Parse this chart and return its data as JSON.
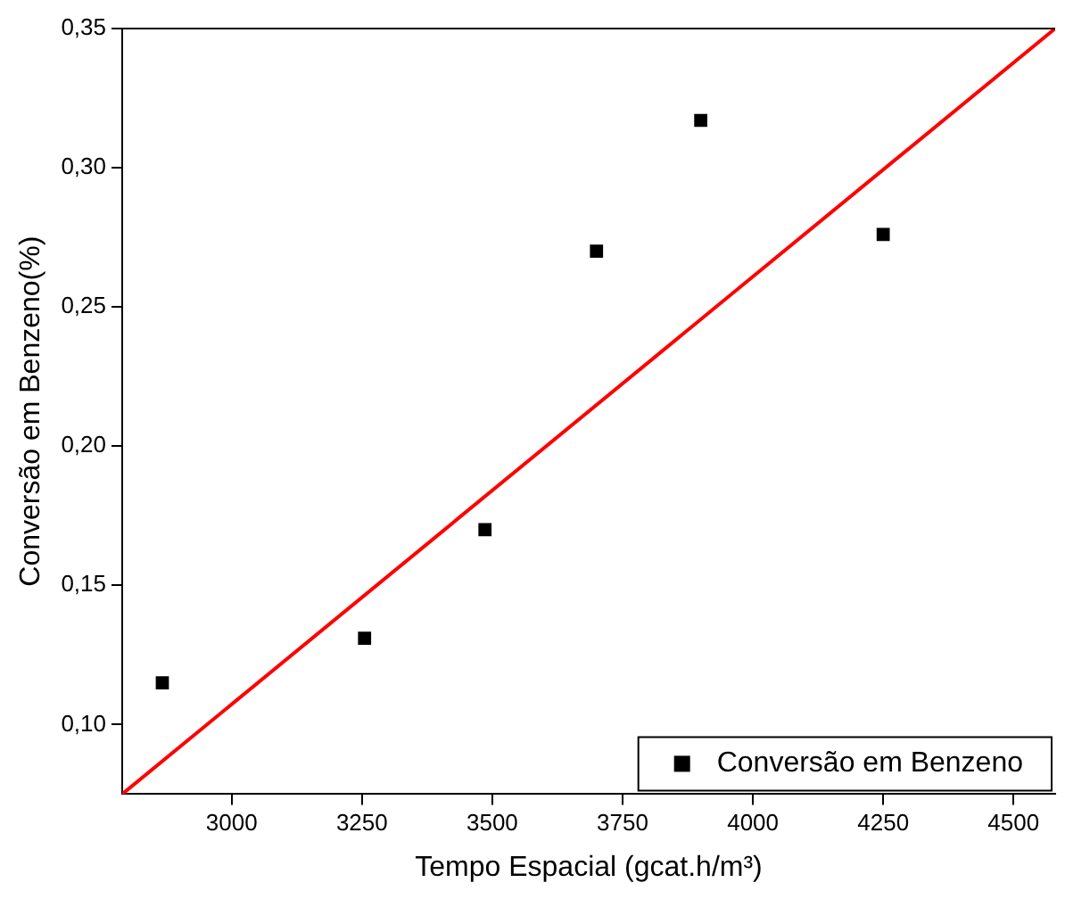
{
  "chart_data": {
    "type": "scatter",
    "xlabel": "Tempo Espacial (gcat.h/m³)",
    "ylabel": "Conversão em Benzeno(%)",
    "xlim": [
      2790,
      4580
    ],
    "xticks": [
      3000,
      3250,
      3500,
      3750,
      4000,
      4250,
      4500
    ],
    "ylim": [
      0.075,
      0.35
    ],
    "yticks": [
      {
        "value": 0.1,
        "label": "0,10"
      },
      {
        "value": 0.15,
        "label": "0,15"
      },
      {
        "value": 0.2,
        "label": "0,20"
      },
      {
        "value": 0.25,
        "label": "0,25"
      },
      {
        "value": 0.3,
        "label": "0,30"
      },
      {
        "value": 0.35,
        "label": "0,35"
      }
    ],
    "grid": false,
    "legend": "bottom right",
    "marker": "square",
    "series": [
      {
        "name": "Conversão em Benzeno",
        "color": "#000000",
        "x": [
          2867,
          3255,
          3486,
          3700,
          3900,
          4250
        ],
        "values": [
          0.115,
          0.131,
          0.17,
          0.27,
          0.317,
          0.276
        ]
      },
      {
        "type": "line",
        "color": "#ff0000",
        "line_style": "solid",
        "marker": "none",
        "x": [
          2790,
          4580
        ],
        "values": [
          0.075,
          0.35
        ]
      }
    ]
  }
}
